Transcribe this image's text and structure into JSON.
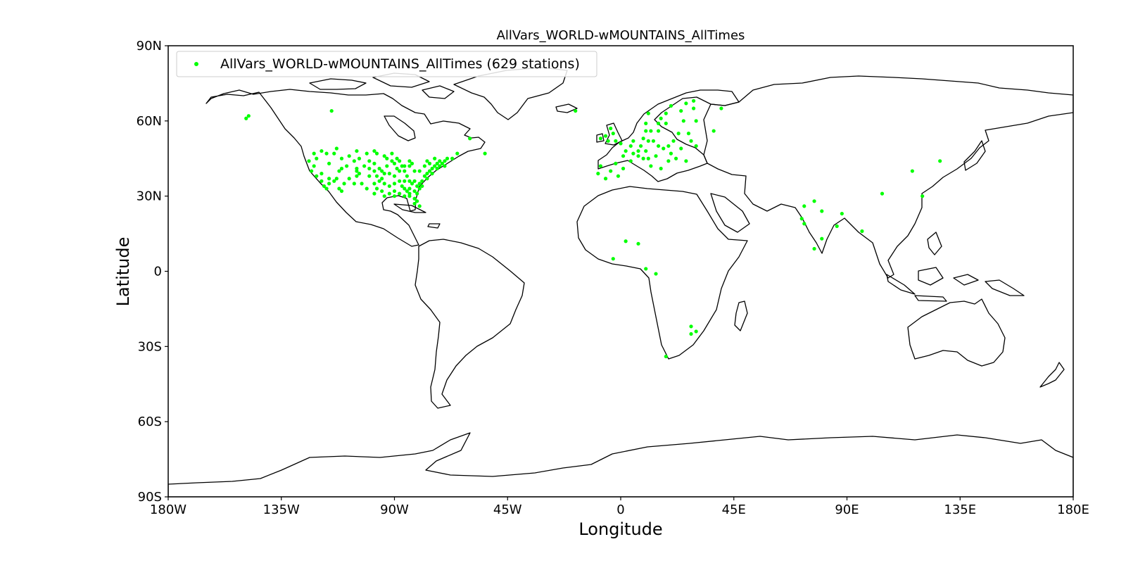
{
  "title": "AllVars_WORLD-wMOUNTAINS_AllTimes",
  "xlabel": "Longitude",
  "ylabel": "Latitude",
  "legend": {
    "label": "AllVars_WORLD-wMOUNTAINS_AllTimes (629 stations)",
    "position": "top-left"
  },
  "colors": {
    "station": "#00ff00",
    "coastline": "#000000",
    "frame": "#000000"
  },
  "chart_data": {
    "type": "scatter",
    "projection": "PlateCarree",
    "xlim": [
      -180,
      180
    ],
    "ylim": [
      -90,
      90
    ],
    "x_ticks": [
      {
        "value": -180,
        "label": "180W"
      },
      {
        "value": -135,
        "label": "135W"
      },
      {
        "value": -90,
        "label": "90W"
      },
      {
        "value": -45,
        "label": "45W"
      },
      {
        "value": 0,
        "label": "0"
      },
      {
        "value": 45,
        "label": "45E"
      },
      {
        "value": 90,
        "label": "90E"
      },
      {
        "value": 135,
        "label": "135E"
      },
      {
        "value": 180,
        "label": "180E"
      }
    ],
    "y_ticks": [
      {
        "value": 90,
        "label": "90N"
      },
      {
        "value": 60,
        "label": "60N"
      },
      {
        "value": 30,
        "label": "30N"
      },
      {
        "value": 0,
        "label": "0"
      },
      {
        "value": -30,
        "label": "30S"
      },
      {
        "value": -60,
        "label": "60S"
      },
      {
        "value": -90,
        "label": "90S"
      }
    ],
    "grid": false,
    "series": [
      {
        "name": "AllVars_WORLD-wMOUNTAINS_AllTimes (629 stations)",
        "points": [
          [
            -149,
            61
          ],
          [
            -148,
            62
          ],
          [
            -115,
            64
          ],
          [
            -122,
            47
          ],
          [
            -121,
            45
          ],
          [
            -122,
            42
          ],
          [
            -121,
            38
          ],
          [
            -119,
            36
          ],
          [
            -118,
            34
          ],
          [
            -117,
            33
          ],
          [
            -116,
            35
          ],
          [
            -114,
            36
          ],
          [
            -112,
            33
          ],
          [
            -111,
            32
          ],
          [
            -110,
            35
          ],
          [
            -112,
            40
          ],
          [
            -111,
            41
          ],
          [
            -116,
            43
          ],
          [
            -117,
            47
          ],
          [
            -114,
            47
          ],
          [
            -111,
            45
          ],
          [
            -108,
            46
          ],
          [
            -106,
            44
          ],
          [
            -105,
            41
          ],
          [
            -105,
            40
          ],
          [
            -104,
            39
          ],
          [
            -106,
            35
          ],
          [
            -103,
            35
          ],
          [
            -101,
            33
          ],
          [
            -98,
            31
          ],
          [
            -97,
            33
          ],
          [
            -96,
            36
          ],
          [
            -97,
            38
          ],
          [
            -98,
            40
          ],
          [
            -100,
            41
          ],
          [
            -100,
            44
          ],
          [
            -101,
            47
          ],
          [
            -97,
            47
          ],
          [
            -94,
            46
          ],
          [
            -93,
            45
          ],
          [
            -93,
            42
          ],
          [
            -94,
            39
          ],
          [
            -95,
            37
          ],
          [
            -95,
            32
          ],
          [
            -94,
            30
          ],
          [
            -92,
            31
          ],
          [
            -90,
            30
          ],
          [
            -90,
            32
          ],
          [
            -90,
            35
          ],
          [
            -88,
            36
          ],
          [
            -87,
            34
          ],
          [
            -86,
            33
          ],
          [
            -85,
            32
          ],
          [
            -84,
            33
          ],
          [
            -82,
            32
          ],
          [
            -81,
            34
          ],
          [
            -80,
            33
          ],
          [
            -79,
            36
          ],
          [
            -77,
            37
          ],
          [
            -77,
            39
          ],
          [
            -76,
            40
          ],
          [
            -75,
            41
          ],
          [
            -74,
            42
          ],
          [
            -73,
            43
          ],
          [
            -72,
            44
          ],
          [
            -71,
            43
          ],
          [
            -70,
            44
          ],
          [
            -69,
            45
          ],
          [
            -67,
            45
          ],
          [
            -86,
            40
          ],
          [
            -87,
            42
          ],
          [
            -84,
            42
          ],
          [
            -83,
            43
          ],
          [
            -82,
            40
          ],
          [
            -80,
            40
          ],
          [
            -85,
            38
          ],
          [
            -86,
            36
          ],
          [
            -84,
            36
          ],
          [
            -82,
            36
          ],
          [
            -81,
            28
          ],
          [
            -82,
            27
          ],
          [
            -80,
            26
          ],
          [
            -84,
            30
          ],
          [
            -88,
            31
          ],
          [
            -89,
            41
          ],
          [
            -90,
            43
          ],
          [
            -91,
            44
          ],
          [
            -89,
            45
          ],
          [
            -88,
            44
          ],
          [
            -92,
            39
          ],
          [
            -95,
            40
          ],
          [
            -96,
            41
          ],
          [
            -98,
            43
          ],
          [
            -102,
            42
          ],
          [
            -104,
            45
          ],
          [
            -109,
            42
          ],
          [
            -113,
            37
          ],
          [
            -119,
            39
          ],
          [
            -123,
            40
          ],
          [
            -124,
            44
          ],
          [
            -116,
            37
          ],
          [
            -108,
            37
          ],
          [
            -105,
            38
          ],
          [
            -100,
            38
          ],
          [
            -98,
            35
          ],
          [
            -94,
            35
          ],
          [
            -92,
            34
          ],
          [
            -90,
            38
          ],
          [
            -88,
            40
          ],
          [
            -86,
            42
          ],
          [
            -84,
            44
          ],
          [
            -78,
            42
          ],
          [
            -76,
            43
          ],
          [
            -73,
            41
          ],
          [
            -75,
            39
          ],
          [
            -78,
            38
          ],
          [
            -80,
            35
          ],
          [
            -83,
            35
          ],
          [
            -84,
            31
          ],
          [
            -86,
            30
          ],
          [
            -82,
            29
          ],
          [
            -81,
            31
          ],
          [
            -79,
            34
          ],
          [
            -72,
            42
          ],
          [
            -70,
            42
          ],
          [
            -74,
            45
          ],
          [
            -77,
            44
          ],
          [
            -60,
            53
          ],
          [
            -54,
            47
          ],
          [
            -65,
            47
          ],
          [
            -105,
            48
          ],
          [
            -113,
            49
          ],
          [
            -119,
            48
          ],
          [
            -98,
            48
          ],
          [
            -91,
            47
          ],
          [
            -18,
            64
          ],
          [
            -9,
            39
          ],
          [
            -8,
            42
          ],
          [
            -6,
            37
          ],
          [
            -4,
            40
          ],
          [
            -2,
            43
          ],
          [
            -1,
            38
          ],
          [
            1,
            41
          ],
          [
            -5,
            52
          ],
          [
            -3,
            55
          ],
          [
            -2,
            52
          ],
          [
            0,
            51
          ],
          [
            -4,
            57
          ],
          [
            -6,
            54
          ],
          [
            -8,
            53
          ],
          [
            2,
            48
          ],
          [
            1,
            46
          ],
          [
            4,
            44
          ],
          [
            5,
            47
          ],
          [
            7,
            48
          ],
          [
            7,
            46
          ],
          [
            8,
            50
          ],
          [
            10,
            48
          ],
          [
            11,
            52
          ],
          [
            13,
            52
          ],
          [
            9,
            53
          ],
          [
            10,
            56
          ],
          [
            12,
            56
          ],
          [
            15,
            50
          ],
          [
            17,
            49
          ],
          [
            19,
            50
          ],
          [
            21,
            52
          ],
          [
            14,
            46
          ],
          [
            11,
            45
          ],
          [
            12,
            42
          ],
          [
            16,
            41
          ],
          [
            9,
            45
          ],
          [
            5,
            52
          ],
          [
            4,
            50
          ],
          [
            10,
            59
          ],
          [
            11,
            63
          ],
          [
            15,
            59
          ],
          [
            18,
            59
          ],
          [
            18,
            63
          ],
          [
            20,
            66
          ],
          [
            25,
            60
          ],
          [
            24,
            64
          ],
          [
            26,
            67
          ],
          [
            29,
            68
          ],
          [
            29,
            65
          ],
          [
            27,
            55
          ],
          [
            30,
            50
          ],
          [
            28,
            52
          ],
          [
            23,
            55
          ],
          [
            24,
            49
          ],
          [
            20,
            47
          ],
          [
            22,
            45
          ],
          [
            26,
            44
          ],
          [
            19,
            44
          ],
          [
            15,
            56
          ],
          [
            16,
            61
          ],
          [
            37,
            56
          ],
          [
            40,
            65
          ],
          [
            30,
            60
          ],
          [
            -3,
            5
          ],
          [
            2,
            12
          ],
          [
            7,
            11
          ],
          [
            10,
            1
          ],
          [
            14,
            -1
          ],
          [
            28,
            -22
          ],
          [
            28,
            -25
          ],
          [
            30,
            -24
          ],
          [
            18,
            -34
          ],
          [
            72,
            21
          ],
          [
            73,
            19
          ],
          [
            77,
            28
          ],
          [
            80,
            24
          ],
          [
            80,
            13
          ],
          [
            77,
            9
          ],
          [
            73,
            26
          ],
          [
            88,
            23
          ],
          [
            86,
            18
          ],
          [
            96,
            16
          ],
          [
            104,
            31
          ],
          [
            116,
            40
          ],
          [
            120,
            30
          ],
          [
            127,
            44
          ]
        ]
      }
    ]
  }
}
